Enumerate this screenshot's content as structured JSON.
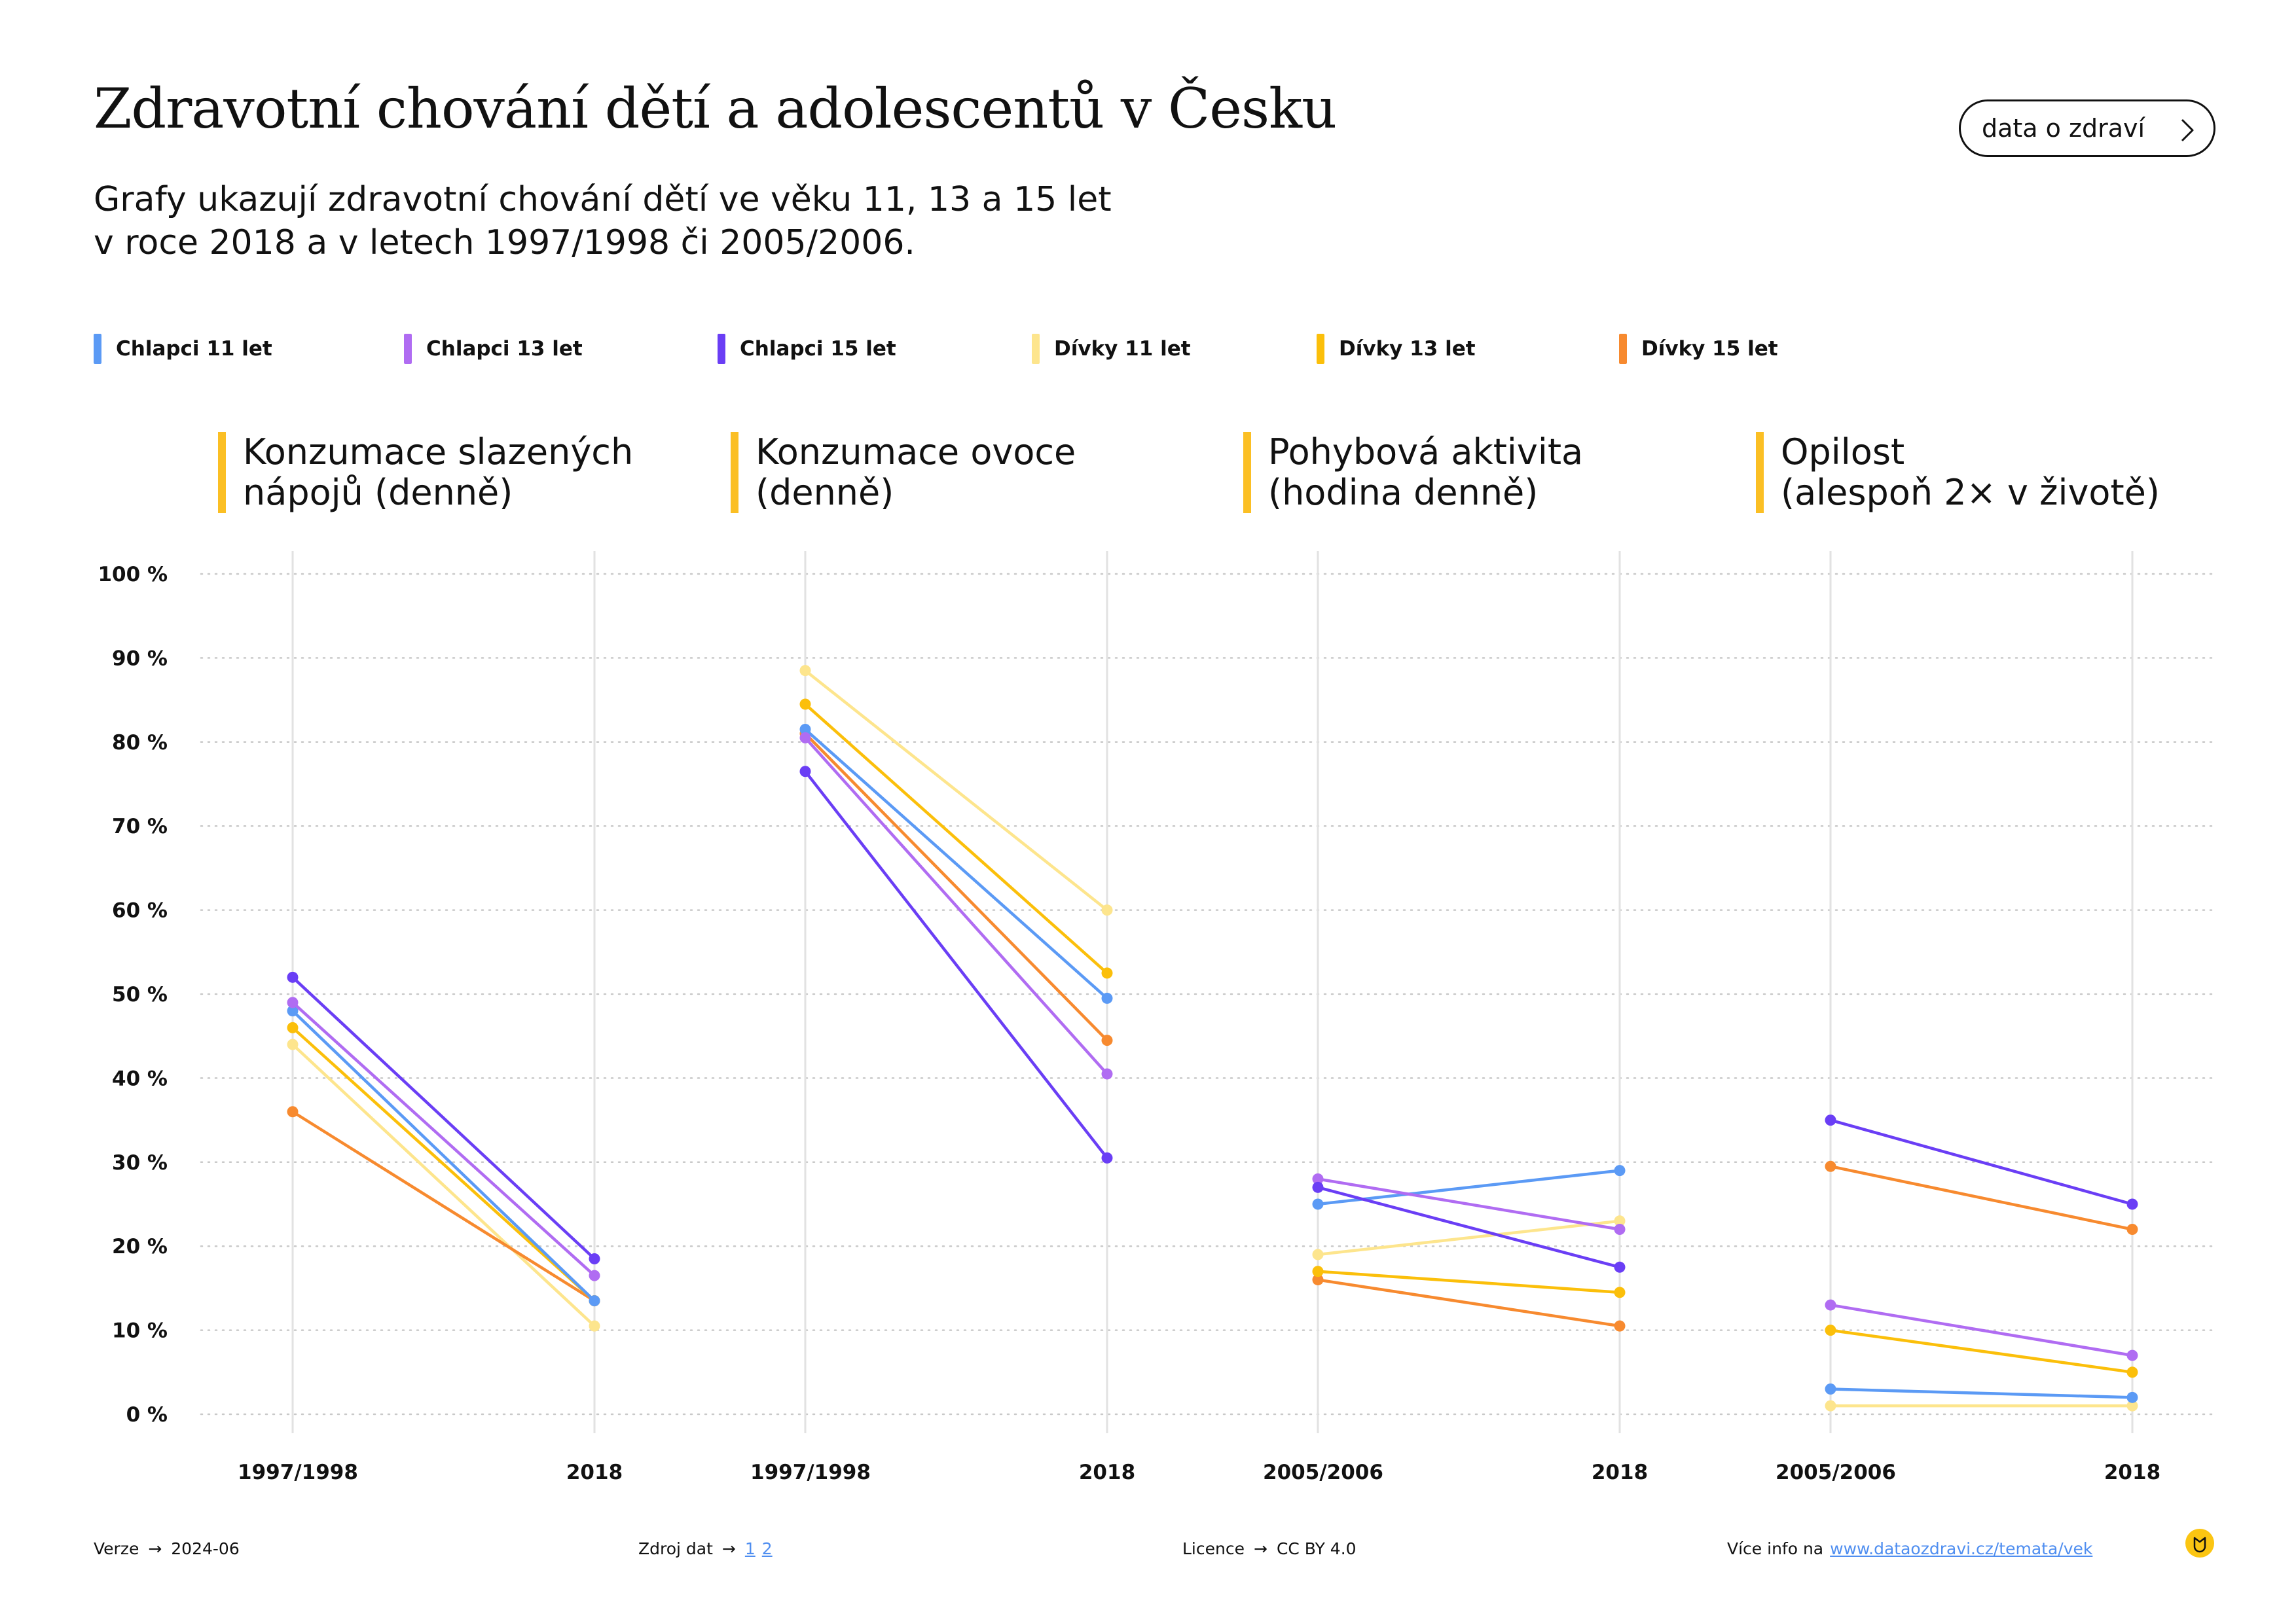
{
  "header": {
    "title": "Zdravotní chování dětí a adolescentů v Česku",
    "subtitle_line1": "Grafy ukazují zdravotní chování dětí ve věku 11, 13 a 15 let",
    "subtitle_line2": "v roce 2018 a v letech 1997/1998 či 2005/2006.",
    "cta_label": "data o zdraví",
    "cta_icon": "chevron-right-icon"
  },
  "legend": [
    {
      "label": "Chlapci 11 let",
      "color": "#5b9af5"
    },
    {
      "label": "Chlapci 13 let",
      "color": "#b06cf2"
    },
    {
      "label": "Chlapci 15 let",
      "color": "#6a3ef5"
    },
    {
      "label": "Dívky 11 let",
      "color": "#fde58d"
    },
    {
      "label": "Dívky 13 let",
      "color": "#fbbf0a"
    },
    {
      "label": "Dívky 15 let",
      "color": "#f78a2f"
    }
  ],
  "panel_accent": "#fbbf24",
  "chart_data": {
    "type": "line",
    "ylim": [
      0,
      100
    ],
    "yticks": [
      "0 %",
      "10 %",
      "20 %",
      "30 %",
      "40 %",
      "50 %",
      "60 %",
      "70 %",
      "80 %",
      "90 %",
      "100 %"
    ],
    "grid": true,
    "legend_placement": "top",
    "series_names": [
      "Chlapci 11 let",
      "Chlapci 13 let",
      "Chlapci 15 let",
      "Dívky 11 let",
      "Dívky 13 let",
      "Dívky 15 let"
    ],
    "panels": [
      {
        "title_line1": "Konzumace slazených",
        "title_line2": "nápojů (denně)",
        "x": [
          "1997/1998",
          "2018"
        ],
        "values": [
          [
            48,
            13.5
          ],
          [
            49,
            16.5
          ],
          [
            52,
            18.5
          ],
          [
            44,
            10.5
          ],
          [
            46,
            13.5
          ],
          [
            36,
            13.5
          ]
        ]
      },
      {
        "title_line1": "Konzumace ovoce",
        "title_line2": "(denně)",
        "x": [
          "1997/1998",
          "2018"
        ],
        "values": [
          [
            81.5,
            49.5
          ],
          [
            80.5,
            40.5
          ],
          [
            76.5,
            30.5
          ],
          [
            88.5,
            60
          ],
          [
            84.5,
            52.5
          ],
          [
            81,
            44.5
          ]
        ]
      },
      {
        "title_line1": "Pohybová aktivita",
        "title_line2": "(hodina denně)",
        "x": [
          "2005/2006",
          "2018"
        ],
        "values": [
          [
            25,
            29
          ],
          [
            28,
            22
          ],
          [
            27,
            17.5
          ],
          [
            19,
            23
          ],
          [
            17,
            14.5
          ],
          [
            16,
            10.5
          ]
        ]
      },
      {
        "title_line1": "Opilost",
        "title_line2": "(alespoň 2× v životě)",
        "x": [
          "2005/2006",
          "2018"
        ],
        "values": [
          [
            3,
            2
          ],
          [
            13,
            7
          ],
          [
            35,
            25
          ],
          [
            1,
            1
          ],
          [
            10,
            5
          ],
          [
            29.5,
            22
          ]
        ]
      }
    ]
  },
  "footer": {
    "version_label": "Verze",
    "version_value": "2024-06",
    "source_label": "Zdroj dat",
    "source_link_1": "1",
    "source_link_2": "2",
    "license_label": "Licence",
    "license_value": "CC BY 4.0",
    "more_info_label": "Více info na",
    "more_info_link": "www.dataozdravi.cz/temata/vek",
    "arrow": "→",
    "logo_icon": "logo-icon"
  }
}
